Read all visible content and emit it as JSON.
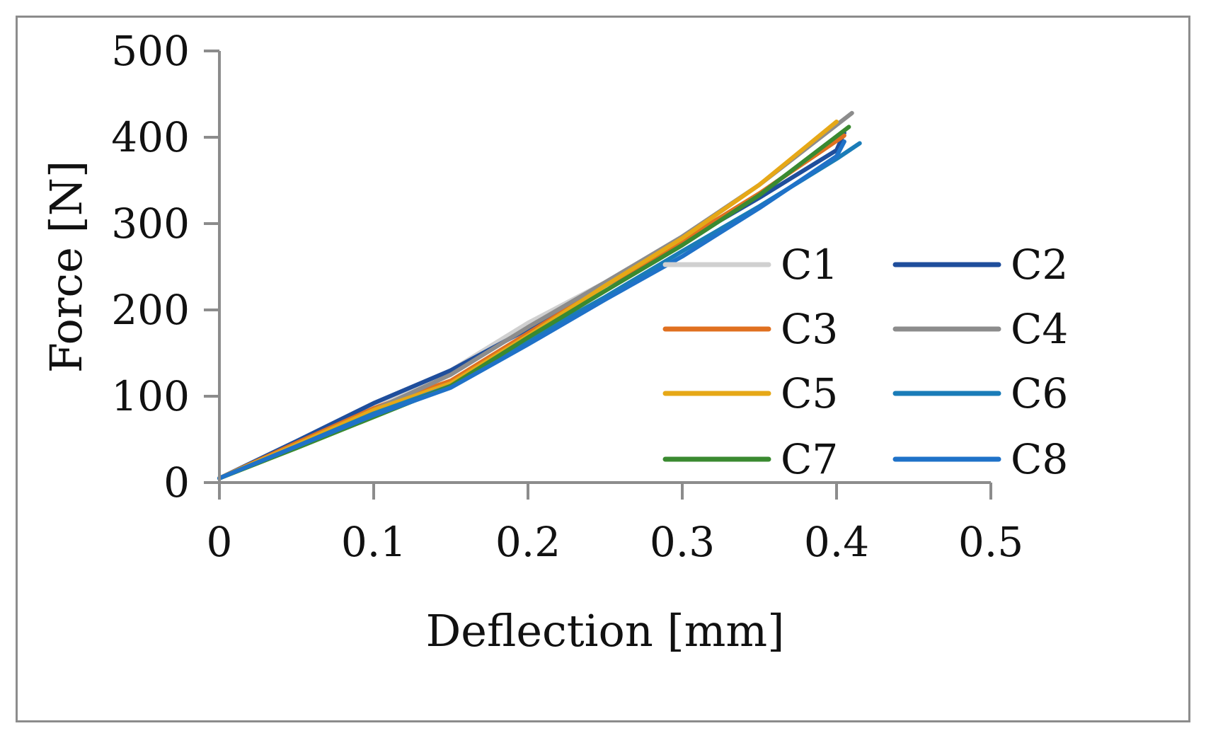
{
  "chart_data": {
    "type": "line",
    "title": "",
    "xlabel": "Deflection [mm]",
    "ylabel": "Force [N]",
    "xlim": [
      0,
      0.5
    ],
    "ylim": [
      0,
      500
    ],
    "xticks": [
      0,
      0.1,
      0.2,
      0.3,
      0.4,
      0.5
    ],
    "xtick_labels": [
      "0",
      "0.1",
      "0.2",
      "0.3",
      "0.4",
      "0.5"
    ],
    "yticks": [
      0,
      100,
      200,
      300,
      400,
      500
    ],
    "ytick_labels": [
      "0",
      "100",
      "200",
      "300",
      "400",
      "500"
    ],
    "grid": false,
    "legend": {
      "position": "right",
      "columns": 2
    },
    "series": [
      {
        "name": "C1",
        "color": "#d0d0d0",
        "points": [
          [
            0,
            5
          ],
          [
            0.05,
            45
          ],
          [
            0.1,
            88
          ],
          [
            0.15,
            130
          ],
          [
            0.2,
            185
          ],
          [
            0.25,
            232
          ],
          [
            0.3,
            280
          ],
          [
            0.35,
            335
          ],
          [
            0.4,
            397
          ]
        ]
      },
      {
        "name": "C2",
        "color": "#1f4e9c",
        "points": [
          [
            0,
            5
          ],
          [
            0.05,
            48
          ],
          [
            0.1,
            92
          ],
          [
            0.15,
            130
          ],
          [
            0.2,
            178
          ],
          [
            0.25,
            228
          ],
          [
            0.3,
            278
          ],
          [
            0.35,
            330
          ],
          [
            0.4,
            385
          ],
          [
            0.405,
            405
          ]
        ]
      },
      {
        "name": "C3",
        "color": "#e07020",
        "points": [
          [
            0,
            5
          ],
          [
            0.05,
            46
          ],
          [
            0.1,
            86
          ],
          [
            0.15,
            118
          ],
          [
            0.2,
            173
          ],
          [
            0.25,
            228
          ],
          [
            0.3,
            280
          ],
          [
            0.35,
            335
          ],
          [
            0.405,
            402
          ]
        ]
      },
      {
        "name": "C4",
        "color": "#8c8c8c",
        "points": [
          [
            0,
            5
          ],
          [
            0.05,
            44
          ],
          [
            0.1,
            84
          ],
          [
            0.15,
            125
          ],
          [
            0.2,
            180
          ],
          [
            0.25,
            232
          ],
          [
            0.3,
            285
          ],
          [
            0.35,
            345
          ],
          [
            0.41,
            428
          ]
        ]
      },
      {
        "name": "C5",
        "color": "#e6a817",
        "points": [
          [
            0,
            5
          ],
          [
            0.05,
            44
          ],
          [
            0.1,
            84
          ],
          [
            0.15,
            115
          ],
          [
            0.2,
            170
          ],
          [
            0.25,
            228
          ],
          [
            0.3,
            283
          ],
          [
            0.35,
            345
          ],
          [
            0.4,
            418
          ]
        ]
      },
      {
        "name": "C6",
        "color": "#1a7cb8",
        "points": [
          [
            0,
            5
          ],
          [
            0.05,
            42
          ],
          [
            0.1,
            80
          ],
          [
            0.15,
            112
          ],
          [
            0.2,
            165
          ],
          [
            0.25,
            215
          ],
          [
            0.3,
            268
          ],
          [
            0.35,
            320
          ],
          [
            0.4,
            375
          ],
          [
            0.415,
            393
          ]
        ]
      },
      {
        "name": "C7",
        "color": "#3a8a30",
        "points": [
          [
            0,
            5
          ],
          [
            0.05,
            40
          ],
          [
            0.1,
            76
          ],
          [
            0.15,
            112
          ],
          [
            0.2,
            168
          ],
          [
            0.25,
            222
          ],
          [
            0.3,
            275
          ],
          [
            0.35,
            333
          ],
          [
            0.408,
            412
          ]
        ]
      },
      {
        "name": "C8",
        "color": "#1f72c8",
        "points": [
          [
            0,
            5
          ],
          [
            0.05,
            42
          ],
          [
            0.1,
            78
          ],
          [
            0.15,
            110
          ],
          [
            0.2,
            160
          ],
          [
            0.25,
            212
          ],
          [
            0.3,
            262
          ],
          [
            0.35,
            318
          ],
          [
            0.4,
            378
          ],
          [
            0.405,
            395
          ]
        ]
      }
    ]
  }
}
